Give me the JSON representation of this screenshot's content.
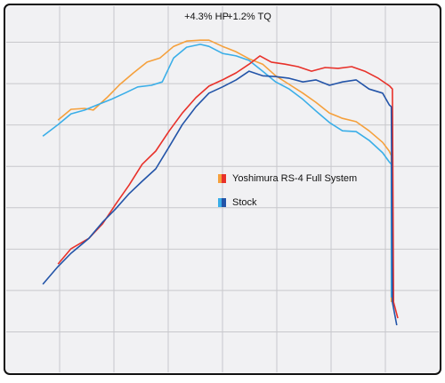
{
  "chart_data": {
    "type": "line",
    "annotations": [
      "+4.3% HP",
      "+1.2% TQ"
    ],
    "xlim": [
      0,
      8
    ],
    "ylim": [
      0,
      9
    ],
    "xticks": [
      1,
      2,
      3,
      4,
      5,
      6,
      7
    ],
    "yticks": [
      1,
      2,
      3,
      4,
      5,
      6,
      7,
      8
    ],
    "grid": true,
    "series": [
      {
        "name": "Yoshimura RS-4 Full System",
        "lines": [
          {
            "color": "#f5a03c",
            "x": [
              0.97,
              1.21,
              1.46,
              1.62,
              1.87,
              2.11,
              2.36,
              2.61,
              2.85,
              3.1,
              3.34,
              3.59,
              3.75,
              4.0,
              4.25,
              4.49,
              4.74,
              4.98,
              5.23,
              5.48,
              5.72,
              5.97,
              6.21,
              6.46,
              6.7,
              6.95,
              7.07,
              7.11,
              7.11
            ],
            "values": [
              6.12,
              6.38,
              6.4,
              6.36,
              6.66,
              6.98,
              7.26,
              7.52,
              7.62,
              7.9,
              8.03,
              8.05,
              8.05,
              7.9,
              7.77,
              7.6,
              7.47,
              7.19,
              6.98,
              6.77,
              6.55,
              6.29,
              6.16,
              6.08,
              5.86,
              5.58,
              5.37,
              5.26,
              1.72
            ]
          },
          {
            "color": "#e8312a",
            "x": [
              0.97,
              1.21,
              1.54,
              1.79,
              2.03,
              2.28,
              2.52,
              2.77,
              3.02,
              3.26,
              3.51,
              3.75,
              4.0,
              4.25,
              4.49,
              4.69,
              4.9,
              5.15,
              5.39,
              5.64,
              5.89,
              6.13,
              6.38,
              6.62,
              6.87,
              7.08,
              7.13,
              7.15,
              7.23
            ],
            "values": [
              2.64,
              3.01,
              3.26,
              3.61,
              4.08,
              4.55,
              5.05,
              5.37,
              5.86,
              6.29,
              6.66,
              6.94,
              7.09,
              7.26,
              7.47,
              7.67,
              7.52,
              7.47,
              7.41,
              7.3,
              7.39,
              7.37,
              7.41,
              7.3,
              7.13,
              6.94,
              6.87,
              1.72,
              1.33
            ]
          }
        ]
      },
      {
        "name": "Stock",
        "lines": [
          {
            "color": "#3aaee8",
            "x": [
              0.69,
              0.97,
              1.21,
              1.46,
              1.7,
              1.95,
              2.2,
              2.44,
              2.69,
              2.89,
              3.1,
              3.34,
              3.59,
              3.75,
              4.0,
              4.25,
              4.49,
              4.74,
              4.98,
              5.23,
              5.48,
              5.72,
              5.97,
              6.21,
              6.46,
              6.7,
              6.95,
              7.07,
              7.11,
              7.11
            ],
            "values": [
              5.73,
              6.01,
              6.27,
              6.36,
              6.49,
              6.62,
              6.77,
              6.92,
              6.96,
              7.04,
              7.62,
              7.88,
              7.95,
              7.9,
              7.73,
              7.67,
              7.56,
              7.3,
              7.04,
              6.87,
              6.62,
              6.34,
              6.06,
              5.86,
              5.84,
              5.63,
              5.33,
              5.11,
              5.05,
              1.83
            ]
          },
          {
            "color": "#2354a8",
            "x": [
              0.69,
              0.97,
              1.21,
              1.54,
              1.79,
              2.03,
              2.28,
              2.52,
              2.77,
              3.02,
              3.26,
              3.51,
              3.75,
              4.0,
              4.25,
              4.49,
              4.74,
              4.98,
              5.23,
              5.48,
              5.72,
              5.97,
              6.21,
              6.46,
              6.7,
              6.95,
              7.07,
              7.11,
              7.13,
              7.21
            ],
            "values": [
              2.15,
              2.58,
              2.9,
              3.26,
              3.65,
              3.97,
              4.34,
              4.64,
              4.94,
              5.48,
              6.01,
              6.44,
              6.77,
              6.92,
              7.09,
              7.3,
              7.19,
              7.17,
              7.13,
              7.04,
              7.09,
              6.96,
              7.04,
              7.09,
              6.87,
              6.77,
              6.49,
              6.44,
              1.72,
              1.16
            ]
          }
        ]
      }
    ]
  }
}
